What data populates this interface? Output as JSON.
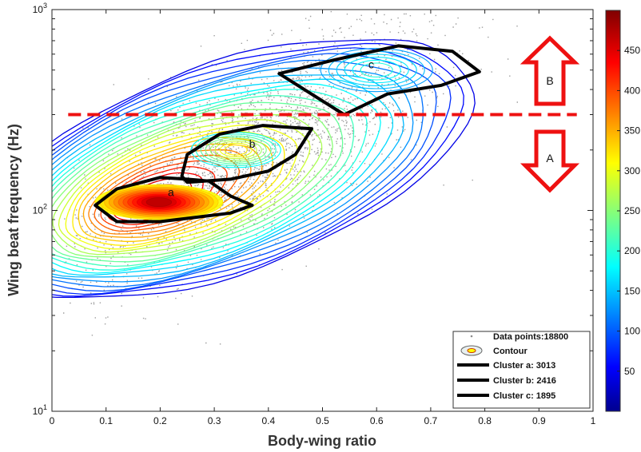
{
  "chart_data": {
    "type": "scatter",
    "title": "",
    "xlabel": "Body-wing ratio",
    "ylabel": "Wing beat frequency (Hz)",
    "xlim": [
      0,
      1
    ],
    "ylim": [
      10,
      1000
    ],
    "y_scale": "log",
    "x_ticks": [
      "0",
      "0.1",
      "0.2",
      "0.3",
      "0.4",
      "0.5",
      "0.6",
      "0.7",
      "0.8",
      "0.9",
      "1"
    ],
    "y_ticks": [
      {
        "value": 10,
        "base": "10",
        "exp": "1"
      },
      {
        "value": 100,
        "base": "10",
        "exp": "2"
      },
      {
        "value": 1000,
        "base": "10",
        "exp": "3"
      }
    ],
    "colorbar": {
      "min": 0,
      "max": 500,
      "ticks": [
        "50",
        "100",
        "150",
        "200",
        "250",
        "300",
        "350",
        "400",
        "450"
      ],
      "colormap": "jet"
    },
    "threshold_line": {
      "y": 300,
      "color": "#ee1111"
    },
    "regions": [
      {
        "label": "B",
        "direction": "up"
      },
      {
        "label": "A",
        "direction": "down"
      }
    ],
    "clusters": [
      {
        "label": "a",
        "count": 3013,
        "label_at": {
          "x": 0.22,
          "y": 118
        },
        "polygon": [
          [
            0.12,
            128
          ],
          [
            0.2,
            146
          ],
          [
            0.25,
            143
          ],
          [
            0.29,
            140
          ],
          [
            0.33,
            118
          ],
          [
            0.37,
            106
          ],
          [
            0.33,
            97
          ],
          [
            0.26,
            92
          ],
          [
            0.2,
            88
          ],
          [
            0.12,
            88
          ],
          [
            0.08,
            106
          ]
        ]
      },
      {
        "label": "b",
        "count": 2416,
        "label_at": {
          "x": 0.37,
          "y": 205
        },
        "polygon": [
          [
            0.25,
            190
          ],
          [
            0.31,
            240
          ],
          [
            0.39,
            265
          ],
          [
            0.48,
            255
          ],
          [
            0.45,
            190
          ],
          [
            0.4,
            157
          ],
          [
            0.33,
            143
          ],
          [
            0.25,
            138
          ],
          [
            0.24,
            148
          ]
        ]
      },
      {
        "label": "c",
        "count": 1895,
        "label_at": {
          "x": 0.59,
          "y": 510
        },
        "polygon": [
          [
            0.42,
            480
          ],
          [
            0.52,
            560
          ],
          [
            0.64,
            660
          ],
          [
            0.74,
            620
          ],
          [
            0.79,
            490
          ],
          [
            0.72,
            420
          ],
          [
            0.62,
            380
          ],
          [
            0.54,
            300
          ]
        ]
      }
    ],
    "density_peak": {
      "x": 0.18,
      "y": 112
    },
    "point_cloud_params": {
      "total": 18800,
      "drawn": 2600,
      "trend": {
        "a": 1.82,
        "b": 1.3,
        "sd": 0.22
      },
      "x_spread": {
        "mean": 0.37,
        "sd": 0.17
      }
    },
    "legend": {
      "position": "bottom-right",
      "entries": [
        {
          "kind": "points",
          "label": "Data points:18800"
        },
        {
          "kind": "contour",
          "label": "Contour"
        },
        {
          "kind": "line",
          "label": "Cluster a: 3013"
        },
        {
          "kind": "line",
          "label": "Cluster b: 2416"
        },
        {
          "kind": "line",
          "label": "Cluster c: 1895"
        }
      ]
    },
    "grid": false
  }
}
